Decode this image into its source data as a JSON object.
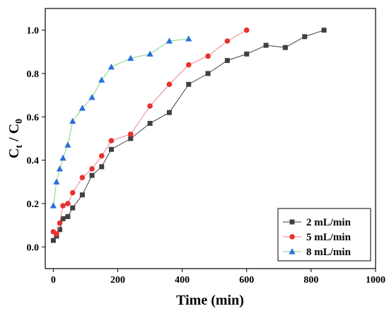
{
  "chart_data": {
    "type": "line",
    "xlabel": "Time (min)",
    "ylabel": "C",
    "ylabel_sub1": "t",
    "ylabel_mid": " / C",
    "ylabel_sub2": "0",
    "xlim": [
      -25,
      1000
    ],
    "ylim": [
      -0.1,
      1.1
    ],
    "xticks": [
      0,
      200,
      400,
      600,
      800,
      1000
    ],
    "yticks": [
      0.0,
      0.2,
      0.4,
      0.6,
      0.8,
      1.0
    ],
    "xtick_labels": [
      "0",
      "200",
      "400",
      "600",
      "800",
      "1000"
    ],
    "ytick_labels": [
      "0.0",
      "0.2",
      "0.4",
      "0.6",
      "0.8",
      "1.0"
    ],
    "grid": false,
    "legend_position": "bottom-right",
    "series": [
      {
        "name": "2 mL/min",
        "color": "#404040",
        "line_color": "#404040",
        "marker": "square",
        "x": [
          0,
          10,
          20,
          30,
          45,
          60,
          90,
          120,
          150,
          180,
          240,
          300,
          360,
          420,
          480,
          540,
          600,
          660,
          720,
          780,
          840
        ],
        "y": [
          0.03,
          0.05,
          0.08,
          0.13,
          0.14,
          0.18,
          0.24,
          0.33,
          0.37,
          0.45,
          0.5,
          0.57,
          0.62,
          0.75,
          0.8,
          0.86,
          0.89,
          0.93,
          0.92,
          0.97,
          1.0
        ]
      },
      {
        "name": "5 mL/min",
        "color": "#e83030",
        "line_color": "#f08080",
        "marker": "circle",
        "x": [
          0,
          10,
          20,
          30,
          45,
          60,
          90,
          120,
          150,
          180,
          240,
          300,
          360,
          420,
          480,
          540,
          600
        ],
        "y": [
          0.07,
          0.06,
          0.11,
          0.19,
          0.2,
          0.25,
          0.32,
          0.36,
          0.42,
          0.49,
          0.52,
          0.65,
          0.75,
          0.84,
          0.88,
          0.95,
          1.0
        ]
      },
      {
        "name": "8 mL/min",
        "color": "#2a6fdb",
        "line_color": "#7fd67f",
        "marker": "triangle",
        "x": [
          0,
          10,
          20,
          30,
          45,
          60,
          90,
          120,
          150,
          180,
          240,
          300,
          360,
          420
        ],
        "y": [
          0.19,
          0.3,
          0.36,
          0.41,
          0.47,
          0.58,
          0.64,
          0.69,
          0.77,
          0.83,
          0.87,
          0.89,
          0.95,
          0.96
        ]
      }
    ]
  }
}
